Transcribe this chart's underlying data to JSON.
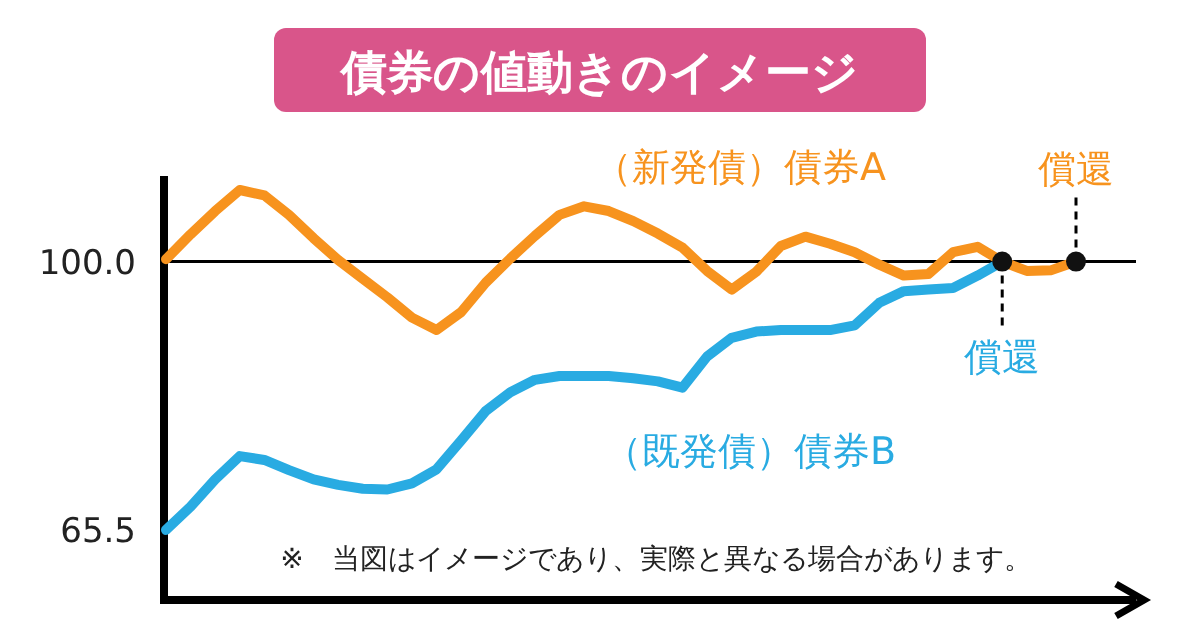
{
  "chart_data": {
    "type": "line",
    "title": "債券の値動きのイメージ",
    "categories": [
      null,
      null,
      null,
      null,
      null,
      null,
      null,
      null,
      null,
      null,
      null,
      null,
      null,
      null,
      null,
      null,
      null,
      null,
      null,
      null,
      null,
      null,
      null,
      null,
      null,
      null,
      null,
      null,
      null,
      null,
      null,
      null,
      null,
      null,
      null,
      null,
      null,
      null
    ],
    "series": [
      {
        "name": "（新発債）債券A",
        "color": "#f7931e",
        "values": [
          100.3,
          103.5,
          106.5,
          109.2,
          108.5,
          106,
          103,
          100.2,
          97.8,
          95.4,
          92.8,
          91.2,
          93.5,
          97.3,
          100.4,
          103.3,
          106,
          107.1,
          106.5,
          105.2,
          103.6,
          101.8,
          98.8,
          96.4,
          98.7,
          102,
          103.2,
          102.3,
          101.2,
          99.6,
          98.2,
          98.4,
          101.2,
          101.9,
          100,
          98.8,
          98.9,
          100
        ]
      },
      {
        "name": "（既発債）債券B",
        "color": "#29abe2",
        "values": [
          65.5,
          68.5,
          72,
          75,
          74.5,
          73.2,
          72,
          71.3,
          70.8,
          70.7,
          71.5,
          73.3,
          77,
          80.8,
          83.2,
          84.8,
          85.3,
          85.3,
          85.3,
          85,
          84.6,
          83.8,
          87.8,
          90.2,
          91,
          91.2,
          91.2,
          91.2,
          91.8,
          94.7,
          96.2,
          96.4,
          96.6,
          98.2,
          100,
          null,
          null,
          null
        ]
      }
    ],
    "ylim": [
      56.5,
      111
    ],
    "yticks": [
      {
        "value": 65.5,
        "label": "65.5"
      },
      {
        "value": 100,
        "label": "100.0"
      }
    ],
    "tick_labels": "y",
    "ref_lines": [
      {
        "axis": "y",
        "value": 100,
        "color": "#000000"
      }
    ],
    "annotations": [
      {
        "text": "償還",
        "y": 100
      },
      {
        "text": "償還",
        "y": 100
      },
      "※　当図はイメージであり、実際と異なる場合があります。"
    ],
    "grid": false,
    "marker": "none",
    "line_style": "solid"
  }
}
